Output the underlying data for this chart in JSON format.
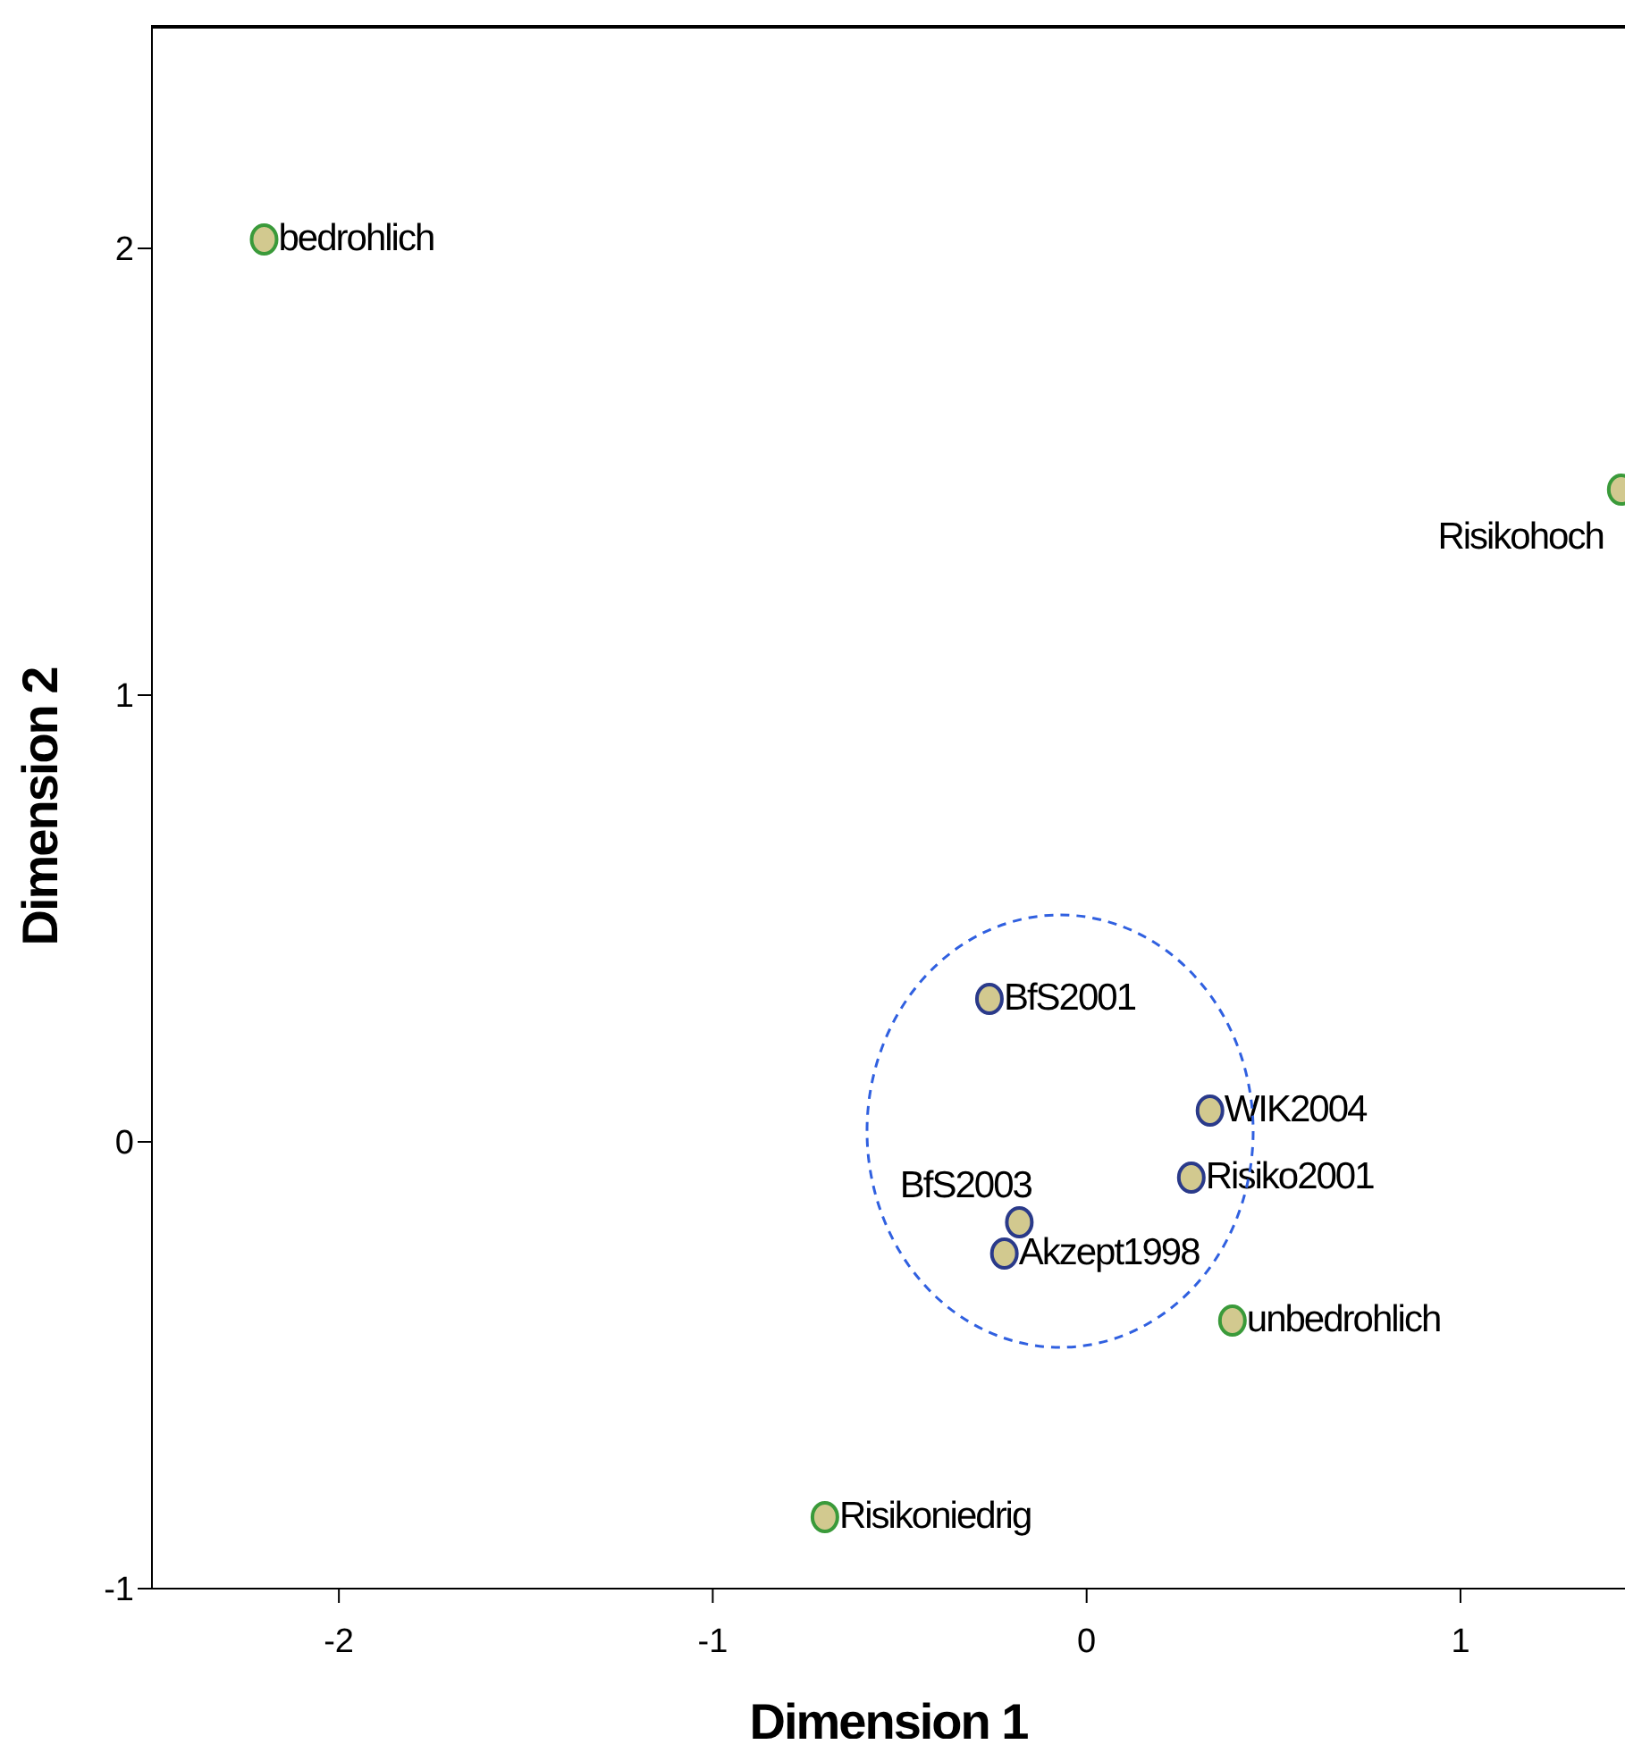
{
  "chart_data": {
    "type": "scatter",
    "xlabel": "Dimension 1",
    "ylabel": "Dimension 2",
    "xlim": [
      -2.5,
      1.44
    ],
    "ylim": [
      -1,
      2.5
    ],
    "xticks": [
      -2,
      -1,
      0,
      1
    ],
    "yticks": [
      -1,
      0,
      1,
      2
    ],
    "grid": false,
    "legend": false,
    "marker": "circle",
    "series": [
      {
        "color": "#3a9a3a",
        "x": [
          -2.2,
          1.43,
          0.39,
          -0.7
        ],
        "values": [
          2.02,
          1.46,
          -0.4,
          -0.84
        ]
      },
      {
        "color": "#2a3a8a",
        "x": [
          -0.26,
          0.33,
          0.28,
          -0.18,
          -0.22
        ],
        "values": [
          0.32,
          0.07,
          -0.08,
          -0.18,
          -0.25
        ]
      }
    ],
    "annotations": [
      {
        "text": "bedrohlich",
        "x": -2.2,
        "y": 2.02
      },
      {
        "text": "Risikohoch",
        "x": 1.43,
        "y": 1.46
      },
      {
        "text": "unbedrohlich",
        "x": 0.39,
        "y": -0.4
      },
      {
        "text": "Risikoniedrig",
        "x": -0.7,
        "y": -0.84
      },
      {
        "text": "BfS2001",
        "x": -0.26,
        "y": 0.32
      },
      {
        "text": "WIK2004",
        "x": 0.33,
        "y": 0.07
      },
      {
        "text": "Risiko2001",
        "x": 0.28,
        "y": -0.08
      },
      {
        "text": "BfS2003",
        "x": -0.18,
        "y": -0.18
      },
      {
        "text": "Akzept1998",
        "x": -0.22,
        "y": -0.25
      }
    ]
  }
}
